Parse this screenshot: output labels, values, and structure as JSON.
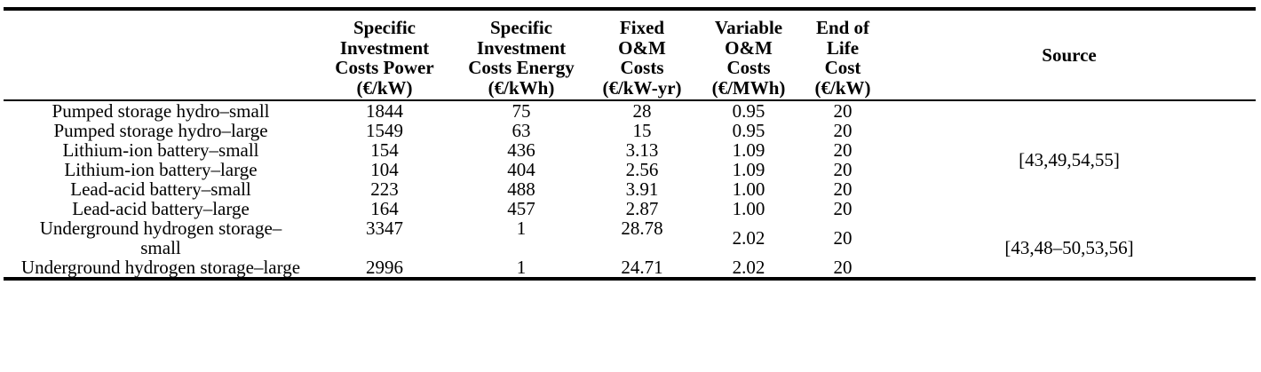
{
  "table": {
    "columns": [
      {
        "lines": [
          "",
          "",
          "",
          ""
        ]
      },
      {
        "lines": [
          "Specific",
          "Investment",
          "Costs Power",
          "(€/kW)"
        ]
      },
      {
        "lines": [
          "Specific",
          "Investment",
          "Costs Energy",
          "(€/kWh)"
        ]
      },
      {
        "lines": [
          "Fixed",
          "O&M",
          "Costs",
          "(€/kW-yr)"
        ]
      },
      {
        "lines": [
          "Variable",
          "O&M",
          "Costs",
          "(€/MWh)"
        ]
      },
      {
        "lines": [
          "End of",
          "Life",
          "Cost",
          "(€/kW)"
        ]
      },
      {
        "lines": [
          "Source"
        ]
      }
    ],
    "rows": [
      {
        "name": "Pumped storage hydro–small",
        "power": "1844",
        "energy": "75",
        "fixed_om": "28",
        "variable_om": "0.95",
        "end_of_life": "20"
      },
      {
        "name": "Pumped storage hydro–large",
        "power": "1549",
        "energy": "63",
        "fixed_om": "15",
        "variable_om": "0.95",
        "end_of_life": "20"
      },
      {
        "name": "Lithium-ion battery–small",
        "power": "154",
        "energy": "436",
        "fixed_om": "3.13",
        "variable_om": "1.09",
        "end_of_life": "20"
      },
      {
        "name": "Lithium-ion battery–large",
        "power": "104",
        "energy": "404",
        "fixed_om": "2.56",
        "variable_om": "1.09",
        "end_of_life": "20"
      },
      {
        "name": "Lead-acid battery–small",
        "power": "223",
        "energy": "488",
        "fixed_om": "3.91",
        "variable_om": "1.00",
        "end_of_life": "20"
      },
      {
        "name": "Lead-acid battery–large",
        "power": "164",
        "energy": "457",
        "fixed_om": "2.87",
        "variable_om": "1.00",
        "end_of_life": "20"
      },
      {
        "name": "Underground hydrogen storage–small",
        "power": "3347",
        "energy": "1",
        "fixed_om": "28.78",
        "variable_om": "2.02",
        "end_of_life": "20"
      },
      {
        "name": "Underground hydrogen storage–large",
        "power": "2996",
        "energy": "1",
        "fixed_om": "24.71",
        "variable_om": "2.02",
        "end_of_life": "20"
      }
    ],
    "sources": {
      "group1": "[43,49,54,55]",
      "group2": "[43,48–50,53,56]"
    }
  }
}
